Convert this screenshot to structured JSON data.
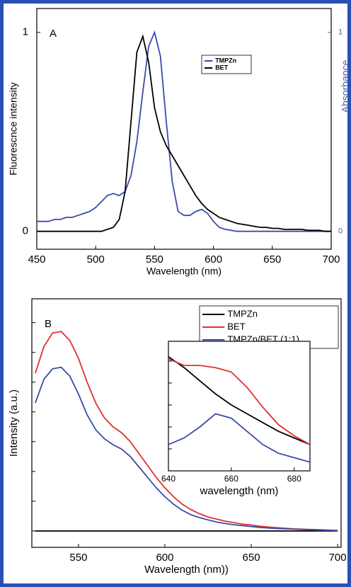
{
  "chart_data": [
    {
      "type": "line",
      "panel_label": "A",
      "xlabel": "Wavelength (nm)",
      "ylabel": "Fluorescnce intensity",
      "y2label": "Absorbance",
      "y2color": "#4a5aae",
      "xlim": [
        450,
        700
      ],
      "xticks": [
        450,
        500,
        550,
        600,
        650,
        700
      ],
      "ylim": [
        -0.09,
        1.12
      ],
      "yticks": [
        0,
        1
      ],
      "y2lim": [
        -0.09,
        1.12
      ],
      "y2ticks": [
        0,
        1
      ],
      "legend": "upper center",
      "x": [
        450,
        455,
        460,
        465,
        470,
        475,
        480,
        485,
        490,
        495,
        500,
        505,
        510,
        515,
        520,
        525,
        530,
        535,
        540,
        545,
        550,
        555,
        560,
        565,
        570,
        575,
        580,
        585,
        590,
        595,
        600,
        605,
        610,
        615,
        620,
        625,
        630,
        635,
        640,
        645,
        650,
        655,
        660,
        665,
        670,
        675,
        680,
        685,
        690,
        695,
        700
      ],
      "series": [
        {
          "name": "TMPZn",
          "color": "#3b4ba8",
          "axis": "y2",
          "values": [
            0.05,
            0.05,
            0.05,
            0.06,
            0.06,
            0.07,
            0.07,
            0.08,
            0.09,
            0.1,
            0.12,
            0.15,
            0.18,
            0.19,
            0.18,
            0.2,
            0.28,
            0.45,
            0.7,
            0.93,
            1.0,
            0.88,
            0.55,
            0.25,
            0.1,
            0.08,
            0.08,
            0.1,
            0.11,
            0.09,
            0.05,
            0.02,
            0.01,
            0.005,
            0,
            0,
            0,
            0,
            0,
            0,
            0,
            0,
            0,
            0,
            0,
            0,
            0,
            0,
            0,
            0,
            0
          ]
        },
        {
          "name": "BET",
          "color": "#000000",
          "values": [
            0,
            0,
            0,
            0,
            0,
            0,
            0,
            0,
            0,
            0,
            0,
            0,
            0.01,
            0.02,
            0.06,
            0.2,
            0.55,
            0.9,
            0.98,
            0.85,
            0.62,
            0.5,
            0.43,
            0.38,
            0.33,
            0.28,
            0.23,
            0.18,
            0.14,
            0.11,
            0.09,
            0.07,
            0.06,
            0.05,
            0.04,
            0.035,
            0.03,
            0.025,
            0.02,
            0.02,
            0.015,
            0.015,
            0.01,
            0.01,
            0.01,
            0.01,
            0.005,
            0.005,
            0.005,
            0,
            0
          ]
        }
      ]
    },
    {
      "type": "line",
      "panel_label": "B",
      "xlabel": "Wavelength (nm))",
      "ylabel": "Intensity (a.u.)",
      "xlim": [
        523,
        702
      ],
      "xticks": [
        550,
        600,
        650,
        700
      ],
      "ylim": [
        -0.55,
        7.8
      ],
      "yticks": [
        0,
        1,
        2,
        3,
        4,
        5,
        6,
        7
      ],
      "ytick_labels": false,
      "legend": "upper right",
      "x": [
        525,
        530,
        535,
        540,
        545,
        550,
        555,
        560,
        565,
        570,
        575,
        580,
        585,
        590,
        595,
        600,
        605,
        610,
        615,
        620,
        625,
        630,
        635,
        640,
        645,
        650,
        655,
        660,
        665,
        670,
        675,
        680,
        685,
        690,
        695,
        700
      ],
      "series": [
        {
          "name": "TMPZn",
          "color": "#000000",
          "values": [
            0,
            0,
            0,
            0,
            0,
            0,
            0,
            0,
            0,
            0,
            0,
            0,
            0,
            0,
            0,
            0,
            0,
            0,
            0,
            0,
            0,
            0,
            0,
            0,
            0,
            0,
            0,
            0,
            0,
            0,
            0,
            0,
            0,
            0,
            0,
            0
          ]
        },
        {
          "name": "BET",
          "color": "#e0302e",
          "values": [
            5.3,
            6.2,
            6.65,
            6.7,
            6.4,
            5.8,
            5.0,
            4.3,
            3.8,
            3.5,
            3.3,
            3.0,
            2.6,
            2.2,
            1.8,
            1.45,
            1.15,
            0.9,
            0.72,
            0.58,
            0.47,
            0.4,
            0.33,
            0.28,
            0.23,
            0.2,
            0.16,
            0.13,
            0.11,
            0.09,
            0.07,
            0.06,
            0.05,
            0.04,
            0.03,
            0.02
          ]
        },
        {
          "name": "TMPZn/BET (1:1)",
          "color": "#3b4ba8",
          "values": [
            4.3,
            5.1,
            5.45,
            5.5,
            5.2,
            4.6,
            3.9,
            3.4,
            3.1,
            2.9,
            2.75,
            2.5,
            2.15,
            1.8,
            1.45,
            1.15,
            0.9,
            0.7,
            0.55,
            0.45,
            0.37,
            0.3,
            0.25,
            0.21,
            0.18,
            0.15,
            0.12,
            0.1,
            0.08,
            0.07,
            0.06,
            0.05,
            0.04,
            0.03,
            0.02,
            0.01
          ]
        }
      ]
    },
    {
      "type": "line",
      "xlabel": "wavelength (nm)",
      "xlim": [
        640,
        685
      ],
      "xticks": [
        640,
        660,
        680
      ],
      "ylim": [
        0,
        5.9
      ],
      "yticks": [
        1,
        2,
        3,
        4,
        5
      ],
      "ytick_labels": false,
      "x": [
        640,
        645,
        650,
        655,
        660,
        665,
        670,
        675,
        680,
        685
      ],
      "series": [
        {
          "color": "#000000",
          "values": [
            5.2,
            4.7,
            4.1,
            3.5,
            3.0,
            2.6,
            2.2,
            1.8,
            1.5,
            1.2
          ]
        },
        {
          "color": "#e0302e",
          "values": [
            5.1,
            4.8,
            4.8,
            4.7,
            4.5,
            3.8,
            2.9,
            2.1,
            1.6,
            1.2
          ]
        },
        {
          "color": "#3b4ba8",
          "values": [
            1.2,
            1.5,
            2.0,
            2.6,
            2.4,
            1.8,
            1.2,
            0.8,
            0.6,
            0.4
          ]
        }
      ]
    }
  ]
}
